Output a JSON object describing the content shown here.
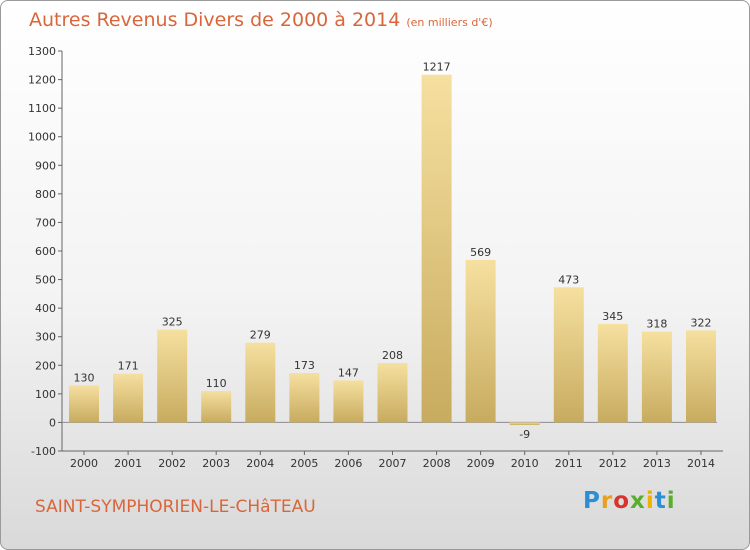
{
  "title": "Autres Revenus Divers de 2000 à 2014",
  "subtitle": "(en milliers d'€)",
  "place": "SAINT-SYMPHORIEN-LE-CHâTEAU",
  "logo": [
    "P",
    "r",
    "o",
    "x",
    "i",
    "t",
    "i"
  ],
  "colors": {
    "bar_light": "#f6e0a0",
    "bar_dark": "#c7ab5f",
    "title": "#d9663a"
  },
  "chart_data": {
    "type": "bar",
    "categories": [
      "2000",
      "2001",
      "2002",
      "2003",
      "2004",
      "2005",
      "2006",
      "2007",
      "2008",
      "2009",
      "2010",
      "2011",
      "2012",
      "2013",
      "2014"
    ],
    "values": [
      130,
      171,
      325,
      110,
      279,
      173,
      147,
      208,
      1217,
      569,
      -9,
      473,
      345,
      318,
      322
    ],
    "title": "Autres Revenus Divers de 2000 à 2014",
    "xlabel": "",
    "ylabel": "",
    "ylim": [
      -100,
      1300
    ],
    "yticks": [
      -100,
      0,
      100,
      200,
      300,
      400,
      500,
      600,
      700,
      800,
      900,
      1000,
      1100,
      1200,
      1300
    ],
    "grid": false
  }
}
